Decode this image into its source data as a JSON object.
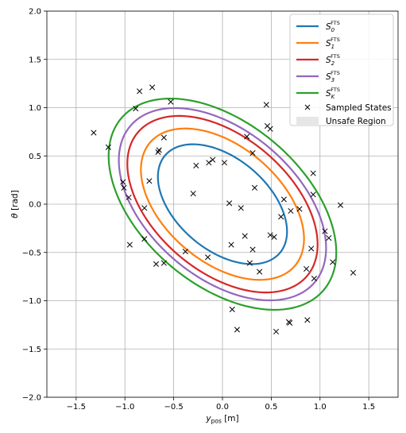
{
  "chart_data": {
    "type": "scatter",
    "xlabel": "y_pos [m]",
    "xlabel_main": "y",
    "xlabel_sub": "pos",
    "xlabel_unit": " [m]",
    "ylabel": "θ [rad]",
    "ylabel_symbol": "θ",
    "ylabel_unit": " [rad]",
    "xlim": [
      -1.8,
      1.8
    ],
    "ylim": [
      -2.0,
      2.0
    ],
    "xticks": [
      -1.5,
      -1.0,
      -0.5,
      0.0,
      0.5,
      1.0,
      1.5
    ],
    "yticks": [
      -2.0,
      -1.5,
      -1.0,
      -0.5,
      0.0,
      0.5,
      1.0,
      1.5,
      2.0
    ],
    "grid": true,
    "legend_position": "top-right",
    "unsafe_region": {
      "label": "Unsafe Region",
      "color": "#e6e6e6",
      "safe_box": {
        "x": [
          -1.8,
          1.8
        ],
        "y": [
          -2.0,
          2.0
        ]
      }
    },
    "ellipses": [
      {
        "name": "S_0^FTS",
        "label_main": "S",
        "label_sub": "0",
        "label_sup": "FTS",
        "color": "#1f77b4",
        "cx": 0.0,
        "cy": 0.0,
        "rx": 0.76,
        "ry": 0.76,
        "tilt": -0.62,
        "points": [
          [
            -0.48,
            0.66
          ],
          [
            0.48,
            -0.66
          ]
        ]
      },
      {
        "name": "S_1^FTS",
        "label_main": "S",
        "label_sub": "1",
        "label_sup": "FTS",
        "color": "#ff7f0e",
        "cx": 0.0,
        "cy": 0.0,
        "rx": 0.96,
        "ry": 0.96,
        "tilt": -0.62,
        "points": [
          [
            -0.6,
            0.84
          ],
          [
            0.6,
            -0.84
          ]
        ]
      },
      {
        "name": "S_2^FTS",
        "label_main": "S",
        "label_sub": "2",
        "label_sup": "FTS",
        "color": "#d62728",
        "cx": 0.0,
        "cy": 0.0,
        "rx": 1.12,
        "ry": 1.12,
        "tilt": -0.62,
        "points": [
          [
            -0.7,
            0.98
          ],
          [
            0.7,
            -0.98
          ]
        ]
      },
      {
        "name": "S_3^FTS",
        "label_main": "S",
        "label_sub": "3",
        "label_sup": "FTS",
        "color": "#9467bd",
        "cx": 0.0,
        "cy": 0.0,
        "rx": 1.22,
        "ry": 1.22,
        "tilt": -0.62,
        "points": [
          [
            -0.76,
            1.07
          ],
          [
            0.76,
            -1.07
          ]
        ]
      },
      {
        "name": "S_K^FTS",
        "label_main": "S",
        "label_sub": "K",
        "label_sup": "FTS",
        "color": "#2ca02c",
        "cx": 0.0,
        "cy": 0.0,
        "rx": 1.34,
        "ry": 1.34,
        "tilt": -0.62,
        "points": [
          [
            -0.84,
            1.17
          ],
          [
            0.84,
            -1.17
          ]
        ]
      }
    ],
    "sampled_states": {
      "label": "Sampled States",
      "marker": "x",
      "color": "#000000",
      "points": [
        [
          -1.32,
          0.74
        ],
        [
          -1.17,
          0.59
        ],
        [
          -1.02,
          0.23
        ],
        [
          -1.01,
          0.17
        ],
        [
          -0.96,
          0.07
        ],
        [
          -0.95,
          -0.42
        ],
        [
          -0.89,
          0.99
        ],
        [
          -0.85,
          1.17
        ],
        [
          -0.8,
          -0.04
        ],
        [
          -0.8,
          -0.36
        ],
        [
          -0.75,
          0.24
        ],
        [
          -0.72,
          1.21
        ],
        [
          -0.68,
          -0.62
        ],
        [
          -0.66,
          0.54
        ],
        [
          -0.65,
          0.56
        ],
        [
          -0.6,
          0.69
        ],
        [
          -0.6,
          -0.61
        ],
        [
          -0.53,
          1.06
        ],
        [
          -0.38,
          -0.49
        ],
        [
          -0.3,
          0.11
        ],
        [
          -0.27,
          0.4
        ],
        [
          -0.14,
          0.43
        ],
        [
          -0.1,
          0.46
        ],
        [
          -0.15,
          -0.55
        ],
        [
          0.02,
          0.43
        ],
        [
          0.07,
          0.01
        ],
        [
          0.09,
          -0.42
        ],
        [
          0.19,
          -0.04
        ],
        [
          0.23,
          -0.33
        ],
        [
          0.28,
          -0.61
        ],
        [
          0.25,
          0.7
        ],
        [
          0.31,
          0.53
        ],
        [
          0.31,
          -0.47
        ],
        [
          0.33,
          0.17
        ],
        [
          0.38,
          -0.7
        ],
        [
          0.45,
          1.03
        ],
        [
          0.46,
          0.81
        ],
        [
          0.49,
          0.78
        ],
        [
          0.49,
          -0.32
        ],
        [
          0.53,
          -0.34
        ],
        [
          0.6,
          -0.13
        ],
        [
          0.63,
          0.05
        ],
        [
          0.7,
          -0.07
        ],
        [
          0.79,
          -0.05
        ],
        [
          0.86,
          -0.67
        ],
        [
          0.91,
          -0.46
        ],
        [
          0.93,
          0.1
        ],
        [
          0.93,
          0.32
        ],
        [
          0.94,
          -0.77
        ],
        [
          1.05,
          -0.28
        ],
        [
          1.09,
          -0.35
        ],
        [
          1.13,
          -0.6
        ],
        [
          1.21,
          -0.01
        ],
        [
          1.34,
          -0.71
        ],
        [
          0.1,
          -1.09
        ],
        [
          0.15,
          -1.3
        ],
        [
          0.55,
          -1.32
        ],
        [
          0.68,
          -1.22
        ],
        [
          0.69,
          -1.23
        ],
        [
          0.87,
          -1.2
        ]
      ]
    }
  }
}
